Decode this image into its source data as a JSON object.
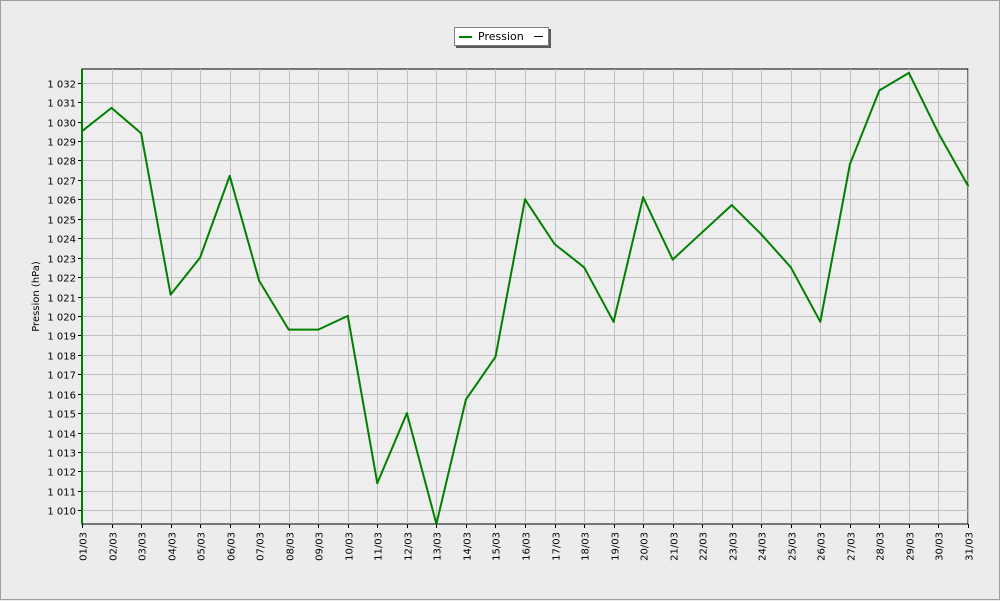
{
  "legend": {
    "label": "Pression",
    "extra": ""
  },
  "colors": {
    "series": "#008000",
    "plot_background": "#eeeeee",
    "grid": "#c0c0c0",
    "chart_background": "#ececec"
  },
  "chart_data": {
    "type": "line",
    "title": "",
    "xlabel": "",
    "ylabel": "Pression (hPa)",
    "ylim": [
      1009.3,
      1032.7
    ],
    "yticks": [
      1010,
      1011,
      1012,
      1013,
      1014,
      1015,
      1016,
      1017,
      1018,
      1019,
      1020,
      1021,
      1022,
      1023,
      1024,
      1025,
      1026,
      1027,
      1028,
      1029,
      1030,
      1031,
      1032
    ],
    "ytick_labels": [
      "1 010",
      "1 011",
      "1 012",
      "1 013",
      "1 014",
      "1 015",
      "1 016",
      "1 017",
      "1 018",
      "1 019",
      "1 020",
      "1 021",
      "1 022",
      "1 023",
      "1 024",
      "1 025",
      "1 026",
      "1 027",
      "1 028",
      "1 029",
      "1 030",
      "1 031",
      "1 032"
    ],
    "categories": [
      "01/03",
      "02/03",
      "03/03",
      "04/03",
      "05/03",
      "06/03",
      "07/03",
      "08/03",
      "09/03",
      "10/03",
      "11/03",
      "12/03",
      "13/03",
      "14/03",
      "15/03",
      "16/03",
      "17/03",
      "18/03",
      "19/03",
      "20/03",
      "21/03",
      "22/03",
      "23/03",
      "24/03",
      "25/03",
      "26/03",
      "27/03",
      "28/03",
      "29/03",
      "30/03",
      "31/03"
    ],
    "grid": true,
    "legend_position": "top-center",
    "series": [
      {
        "name": "Pression",
        "values": [
          1029.5,
          1030.7,
          1029.4,
          1021.1,
          1023.0,
          1027.2,
          1021.8,
          1019.3,
          1019.3,
          1020.0,
          1011.4,
          1015.0,
          1009.3,
          1015.7,
          1017.9,
          1026.0,
          1023.7,
          1022.5,
          1019.7,
          1026.1,
          1022.9,
          1024.3,
          1025.7,
          1024.2,
          1022.5,
          1019.7,
          1027.8,
          1031.6,
          1032.5,
          1029.4,
          1026.7
        ]
      }
    ]
  }
}
